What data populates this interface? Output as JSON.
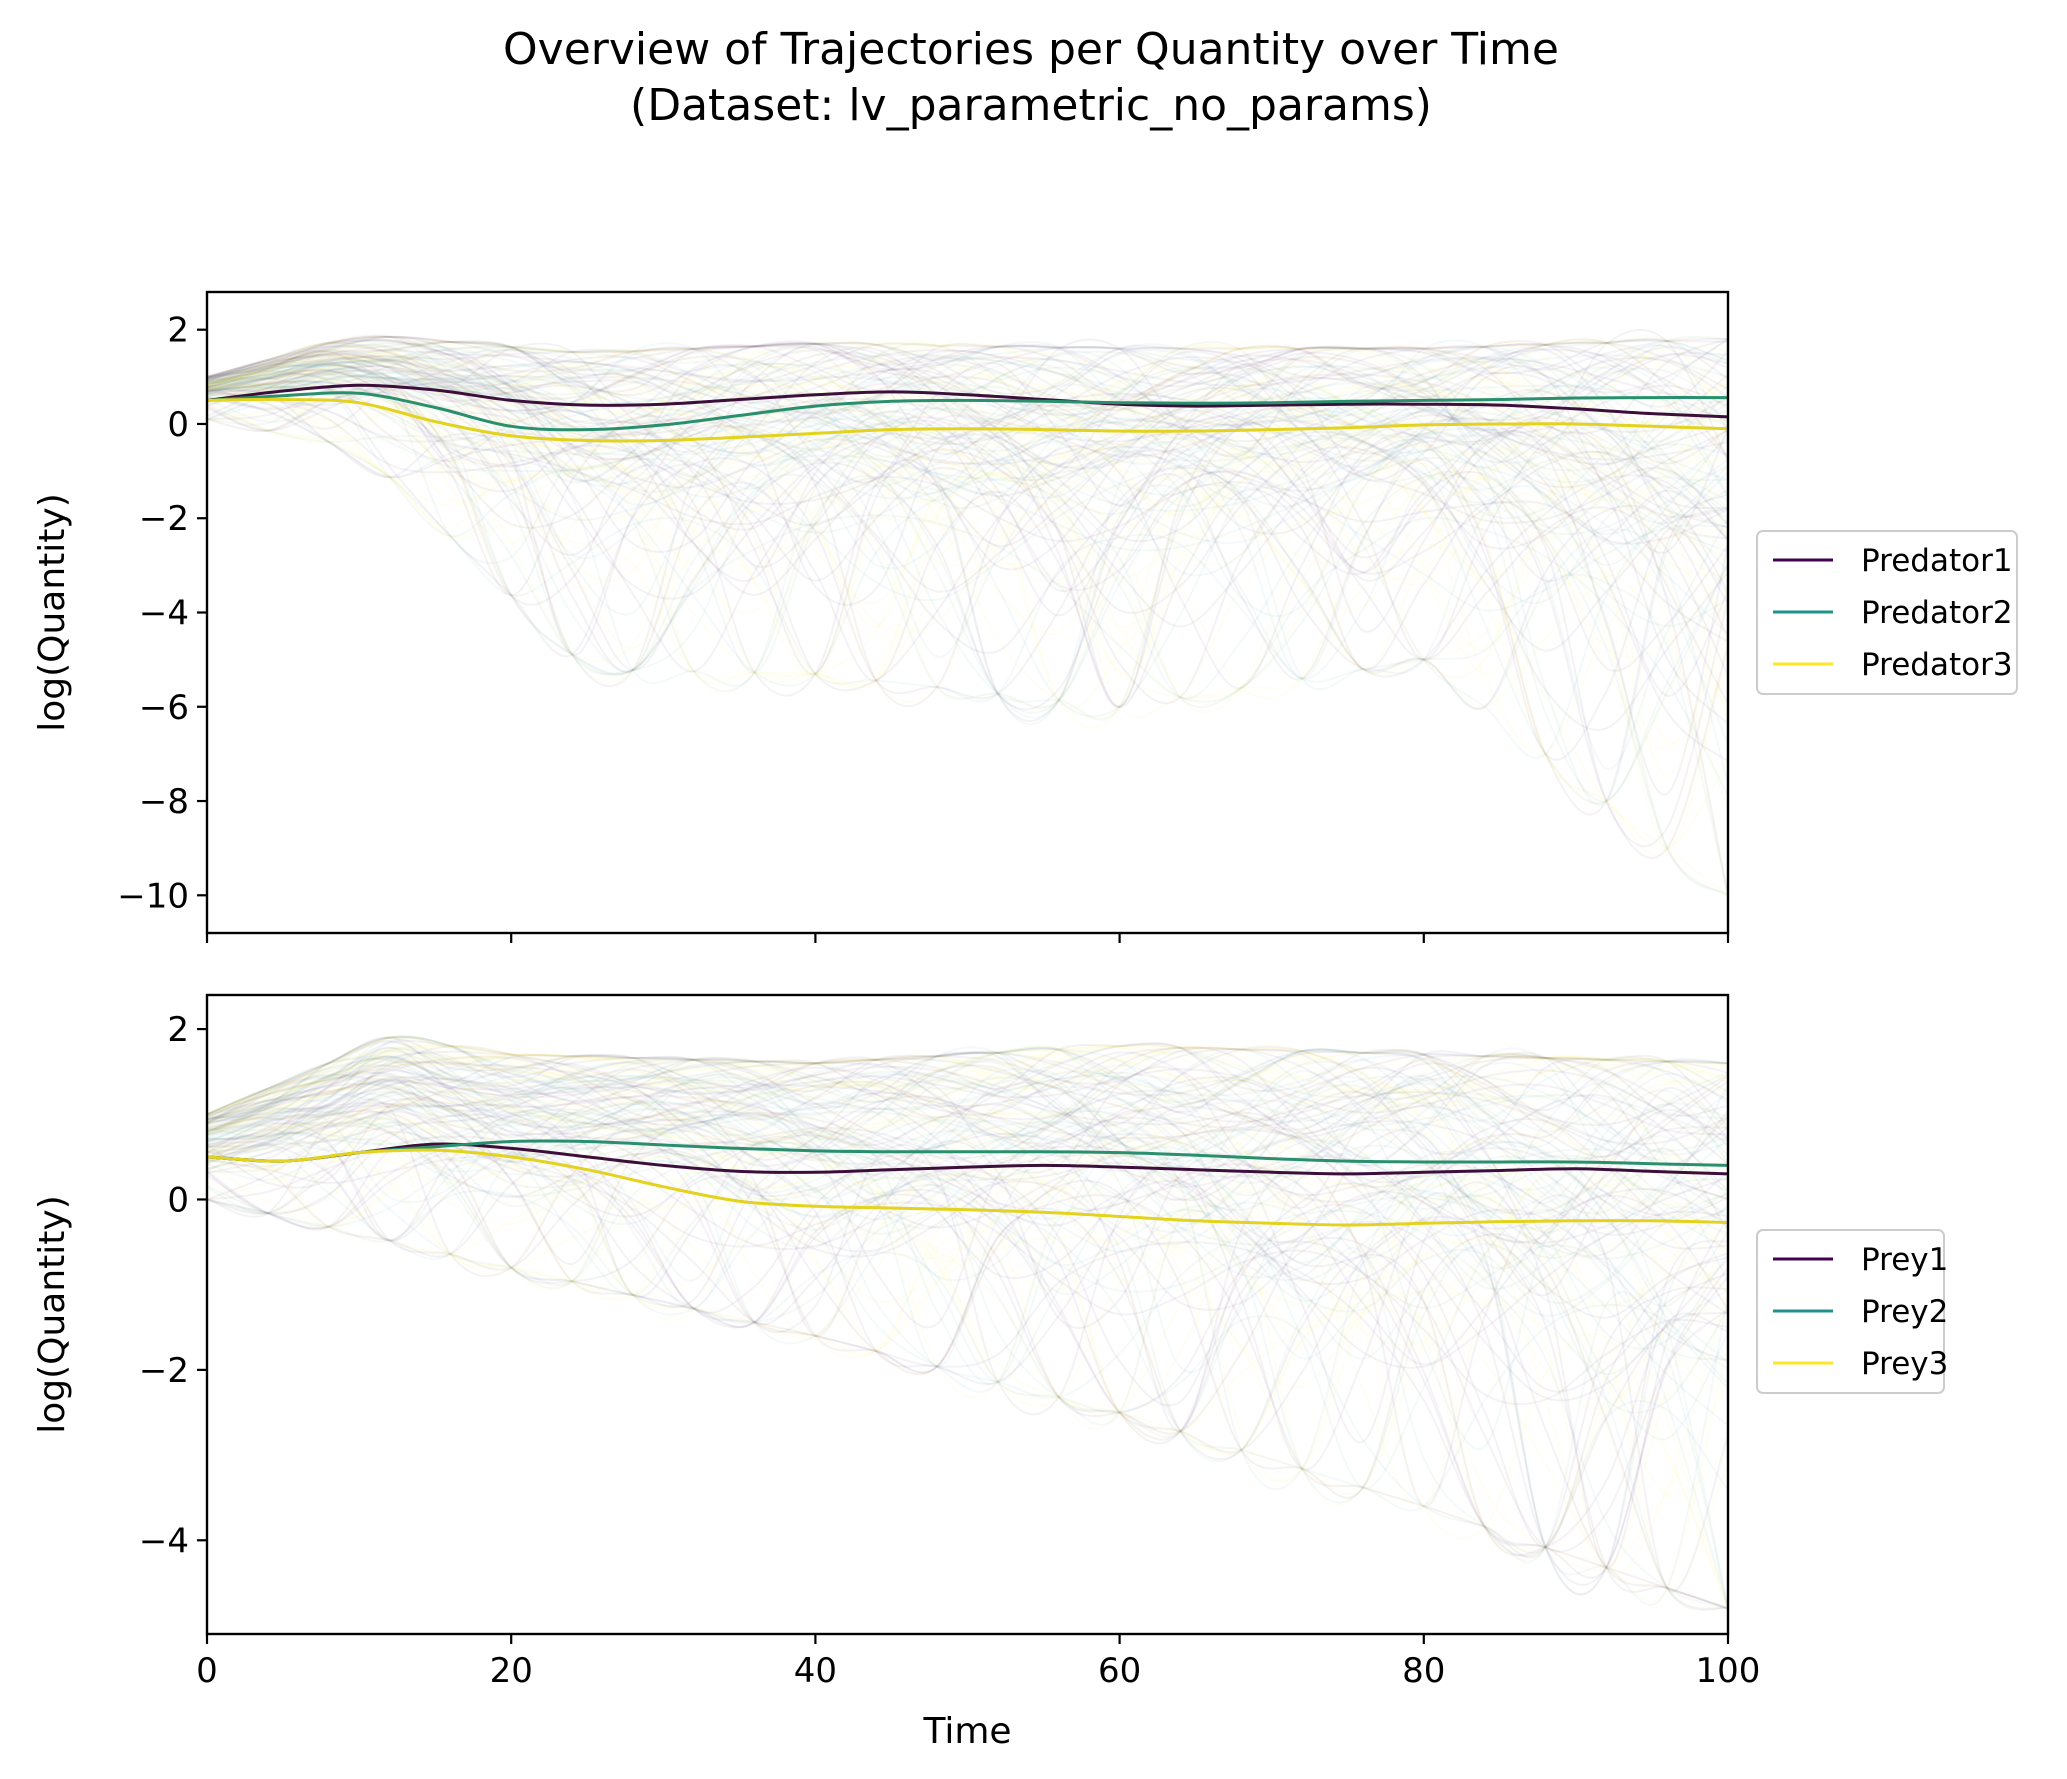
{
  "title_line1": "Overview of Trajectories per Quantity over Time",
  "title_line2": "(Dataset: lv_parametric_no_params)",
  "chart_data": [
    {
      "type": "line",
      "panel": "predator",
      "xlabel": "Time",
      "ylabel": "log(Quantity)",
      "xlim": [
        0,
        100
      ],
      "ylim": [
        -10.8,
        2.8
      ],
      "yticks": [
        2,
        0,
        -2,
        -4,
        -6,
        -8,
        -10
      ],
      "yticklabels": [
        "2",
        "0",
        "−2",
        "−4",
        "−6",
        "−8",
        "−10"
      ],
      "legend_position": "right",
      "grid": false,
      "background_trajectories": {
        "visible": true,
        "alpha": 0.05,
        "range_min": [
          [
            0,
            0.1
          ],
          [
            10,
            -0.5
          ],
          [
            25,
            -5.2
          ],
          [
            40,
            -5.3
          ],
          [
            60,
            -6.0
          ],
          [
            80,
            -5.0
          ],
          [
            100,
            -10.0
          ]
        ],
        "range_max": [
          [
            0,
            1.0
          ],
          [
            10,
            1.9
          ],
          [
            25,
            1.5
          ],
          [
            40,
            1.7
          ],
          [
            60,
            1.6
          ],
          [
            80,
            1.6
          ],
          [
            100,
            1.8
          ]
        ]
      },
      "series": [
        {
          "name": "Predator1",
          "color": "#440154",
          "x": [
            0,
            5,
            10,
            15,
            20,
            25,
            30,
            35,
            40,
            45,
            50,
            55,
            60,
            65,
            70,
            75,
            80,
            85,
            90,
            95,
            100
          ],
          "y": [
            0.5,
            0.7,
            0.82,
            0.72,
            0.5,
            0.4,
            0.42,
            0.52,
            0.62,
            0.68,
            0.62,
            0.52,
            0.42,
            0.38,
            0.4,
            0.42,
            0.42,
            0.4,
            0.32,
            0.22,
            0.15
          ]
        },
        {
          "name": "Predator2",
          "color": "#21918c",
          "x": [
            0,
            5,
            10,
            15,
            20,
            25,
            30,
            35,
            40,
            45,
            50,
            55,
            60,
            65,
            70,
            75,
            80,
            85,
            90,
            95,
            100
          ],
          "y": [
            0.5,
            0.6,
            0.65,
            0.35,
            -0.05,
            -0.12,
            -0.02,
            0.18,
            0.38,
            0.48,
            0.5,
            0.48,
            0.45,
            0.44,
            0.45,
            0.48,
            0.5,
            0.52,
            0.55,
            0.56,
            0.56
          ]
        },
        {
          "name": "Predator3",
          "color": "#fde725",
          "x": [
            0,
            5,
            10,
            15,
            20,
            25,
            30,
            35,
            40,
            45,
            50,
            55,
            60,
            65,
            70,
            75,
            80,
            85,
            90,
            95,
            100
          ],
          "y": [
            0.5,
            0.52,
            0.45,
            0.05,
            -0.25,
            -0.35,
            -0.35,
            -0.28,
            -0.2,
            -0.12,
            -0.1,
            -0.12,
            -0.15,
            -0.15,
            -0.12,
            -0.08,
            -0.02,
            0.0,
            0.0,
            -0.05,
            -0.1
          ]
        }
      ]
    },
    {
      "type": "line",
      "panel": "prey",
      "xlabel": "Time",
      "ylabel": "log(Quantity)",
      "xlim": [
        0,
        100
      ],
      "ylim": [
        -5.1,
        2.4
      ],
      "yticks": [
        2,
        0,
        -2,
        -4
      ],
      "yticklabels": [
        "2",
        "0",
        "−2",
        "−4"
      ],
      "xticks": [
        0,
        20,
        40,
        60,
        80,
        100
      ],
      "xticklabels": [
        "0",
        "20",
        "40",
        "60",
        "80",
        "100"
      ],
      "legend_position": "right",
      "grid": false,
      "background_trajectories": {
        "visible": true,
        "alpha": 0.05,
        "range_min": [
          [
            0,
            0.0
          ],
          [
            20,
            -0.8
          ],
          [
            40,
            -1.6
          ],
          [
            60,
            -2.5
          ],
          [
            80,
            -3.6
          ],
          [
            100,
            -4.8
          ]
        ],
        "range_max": [
          [
            0,
            1.0
          ],
          [
            12,
            1.9
          ],
          [
            20,
            1.7
          ],
          [
            40,
            1.6
          ],
          [
            60,
            1.8
          ],
          [
            80,
            1.7
          ],
          [
            100,
            1.6
          ]
        ]
      },
      "series": [
        {
          "name": "Prey1",
          "color": "#440154",
          "x": [
            0,
            5,
            10,
            15,
            20,
            25,
            30,
            35,
            40,
            45,
            50,
            55,
            60,
            65,
            70,
            75,
            80,
            85,
            90,
            95,
            100
          ],
          "y": [
            0.5,
            0.45,
            0.55,
            0.65,
            0.6,
            0.5,
            0.4,
            0.33,
            0.32,
            0.35,
            0.38,
            0.4,
            0.38,
            0.35,
            0.32,
            0.3,
            0.32,
            0.34,
            0.36,
            0.33,
            0.3
          ]
        },
        {
          "name": "Prey2",
          "color": "#21918c",
          "x": [
            0,
            5,
            10,
            15,
            20,
            25,
            30,
            35,
            40,
            45,
            50,
            55,
            60,
            65,
            70,
            75,
            80,
            85,
            90,
            95,
            100
          ],
          "y": [
            0.5,
            0.45,
            0.55,
            0.62,
            0.68,
            0.68,
            0.64,
            0.6,
            0.57,
            0.56,
            0.56,
            0.56,
            0.55,
            0.52,
            0.48,
            0.45,
            0.44,
            0.44,
            0.44,
            0.42,
            0.4
          ]
        },
        {
          "name": "Prey3",
          "color": "#fde725",
          "x": [
            0,
            5,
            10,
            15,
            20,
            25,
            30,
            35,
            40,
            45,
            50,
            55,
            60,
            65,
            70,
            75,
            80,
            85,
            90,
            95,
            100
          ],
          "y": [
            0.5,
            0.45,
            0.55,
            0.58,
            0.5,
            0.35,
            0.15,
            -0.02,
            -0.08,
            -0.1,
            -0.12,
            -0.15,
            -0.2,
            -0.25,
            -0.28,
            -0.3,
            -0.28,
            -0.26,
            -0.25,
            -0.25,
            -0.27
          ]
        }
      ]
    }
  ]
}
